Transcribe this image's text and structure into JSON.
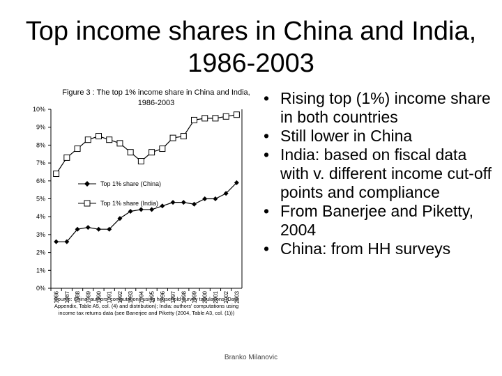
{
  "slide": {
    "title": "Top income shares in China and India, 1986-2003",
    "footer": "Branko Milanovic"
  },
  "figure": {
    "title": "Figure 3 : The top 1% income share in China and India, 1986-2003",
    "source": "Source: China: authors' computations using household survey tabulations (Data Appendix, Table A5, col. (4) and distribution); India: authors' computations using income tax returns data (see Banerjee and Piketty (2004, Table A3, col. (1)))"
  },
  "bullets": [
    "Rising top (1%) income share in both countries",
    "Still lower in China",
    "India: based on fiscal data with v. different income cut-off points and compliance",
    "From Banerjee and Piketty, 2004",
    "China: from HH surveys"
  ],
  "chart_data": {
    "type": "line",
    "title": "Figure 3 : The top 1% income share in China and India, 1986-2003",
    "xlabel": "",
    "ylabel": "",
    "x": [
      "1986",
      "1987",
      "1988",
      "1989",
      "1990",
      "1991",
      "1992",
      "1993",
      "1994",
      "1995",
      "1996",
      "1997",
      "1998",
      "1999",
      "2000",
      "2001",
      "2002",
      "2003"
    ],
    "ylim": [
      0,
      10
    ],
    "yticks": [
      "0%",
      "1%",
      "2%",
      "3%",
      "4%",
      "5%",
      "6%",
      "7%",
      "8%",
      "9%",
      "10%"
    ],
    "series": [
      {
        "name": "Top 1% share (China)",
        "marker": "filled-diamond",
        "color": "#000000",
        "values": [
          2.6,
          2.6,
          3.3,
          3.4,
          3.3,
          3.3,
          3.9,
          4.3,
          4.4,
          4.4,
          4.6,
          4.8,
          4.8,
          4.7,
          5.0,
          5.0,
          5.3,
          5.9
        ]
      },
      {
        "name": "Top 1% share (India)",
        "marker": "open-square",
        "color": "#000000",
        "values": [
          6.4,
          7.3,
          7.8,
          8.3,
          8.5,
          8.3,
          8.1,
          7.6,
          7.1,
          7.6,
          7.8,
          8.4,
          8.5,
          9.4,
          9.5,
          9.5,
          9.6,
          9.7
        ]
      }
    ],
    "grid": false,
    "legend": "inside-left"
  }
}
